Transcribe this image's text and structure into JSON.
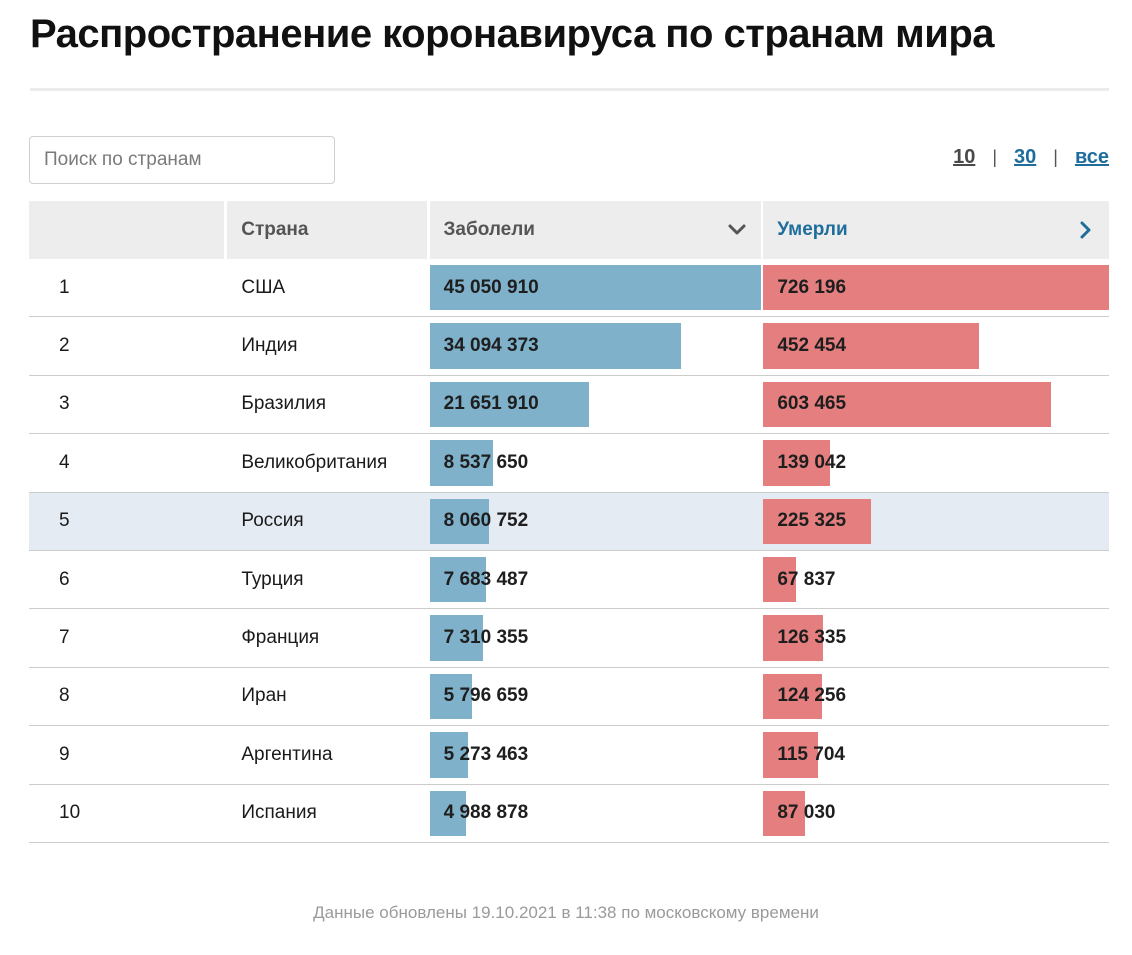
{
  "title": "Распространение коронавируса по странам мира",
  "search": {
    "placeholder": "Поиск по странам",
    "value": ""
  },
  "pager": {
    "options": [
      "10",
      "30",
      "все"
    ],
    "selected": "10"
  },
  "table": {
    "headers": {
      "rank": "",
      "country": "Страна",
      "cases": "Заболели",
      "deaths": "Умерли"
    },
    "sort_icons": {
      "cases": "chevron-down-icon",
      "deaths": "chevron-right-icon"
    },
    "colors": {
      "cases_bar": "#7fb1cb",
      "deaths_bar": "#e57f7f",
      "link": "#1f6d9c",
      "highlight_row": "#e4ebf2"
    },
    "highlighted_country": "Россия",
    "rows": [
      {
        "rank": "1",
        "country": "США",
        "cases": "45 050 910",
        "deaths": "726 196",
        "cases_num": 45050910,
        "deaths_num": 726196
      },
      {
        "rank": "2",
        "country": "Индия",
        "cases": "34 094 373",
        "deaths": "452 454",
        "cases_num": 34094373,
        "deaths_num": 452454
      },
      {
        "rank": "3",
        "country": "Бразилия",
        "cases": "21 651 910",
        "deaths": "603 465",
        "cases_num": 21651910,
        "deaths_num": 603465
      },
      {
        "rank": "4",
        "country": "Великобритания",
        "cases": "8 537 650",
        "deaths": "139 042",
        "cases_num": 8537650,
        "deaths_num": 139042
      },
      {
        "rank": "5",
        "country": "Россия",
        "cases": "8 060 752",
        "deaths": "225 325",
        "cases_num": 8060752,
        "deaths_num": 225325
      },
      {
        "rank": "6",
        "country": "Турция",
        "cases": "7 683 487",
        "deaths": "67 837",
        "cases_num": 7683487,
        "deaths_num": 67837
      },
      {
        "rank": "7",
        "country": "Франция",
        "cases": "7 310 355",
        "deaths": "126 335",
        "cases_num": 7310355,
        "deaths_num": 126335
      },
      {
        "rank": "8",
        "country": "Иран",
        "cases": "5 796 659",
        "deaths": "124 256",
        "cases_num": 5796659,
        "deaths_num": 124256
      },
      {
        "rank": "9",
        "country": "Аргентина",
        "cases": "5 273 463",
        "deaths": "115 704",
        "cases_num": 5273463,
        "deaths_num": 115704
      },
      {
        "rank": "10",
        "country": "Испания",
        "cases": "4 988 878",
        "deaths": "87 030",
        "cases_num": 4988878,
        "deaths_num": 87030
      }
    ]
  },
  "footnote": "Данные обновлены 19.10.2021 в 11:38 по московскому времени"
}
